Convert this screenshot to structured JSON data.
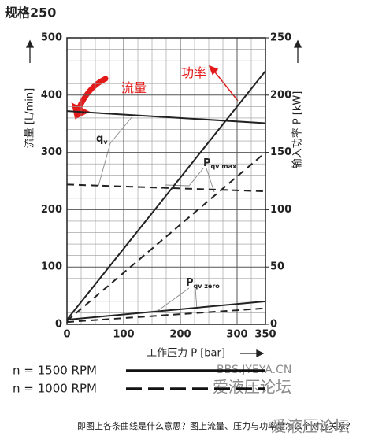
{
  "chart_data": {
    "type": "line",
    "title": "规格250",
    "xlabel": "工作压力 P [bar]",
    "ylabel": "流量 [L/min]",
    "y2label": "输入功率 P [kW]",
    "xlim": [
      0,
      350
    ],
    "xticks": [
      0,
      100,
      200,
      300,
      350
    ],
    "ylim": [
      0,
      500
    ],
    "yticks": [
      0,
      100,
      200,
      300,
      400,
      500
    ],
    "y2lim": [
      0,
      250
    ],
    "y2ticks": [
      0,
      50,
      100,
      150,
      200,
      250
    ],
    "grid": true,
    "series": [
      {
        "color": "#222222",
        "style": "solid",
        "axis": "y",
        "x": [
          0,
          350
        ],
        "values": [
          372,
          351
        ]
      },
      {
        "color": "#222222",
        "style": "dashed",
        "axis": "y",
        "x": [
          0,
          350
        ],
        "values": [
          244,
          232
        ]
      },
      {
        "color": "#222222",
        "style": "solid",
        "axis": "y2",
        "x": [
          0,
          350
        ],
        "values": [
          4,
          221
        ]
      },
      {
        "color": "#222222",
        "style": "dashed",
        "axis": "y2",
        "x": [
          0,
          350
        ],
        "values": [
          3,
          150
        ]
      },
      {
        "color": "#222222",
        "style": "solid",
        "axis": "y2",
        "x": [
          0,
          350
        ],
        "values": [
          4,
          20
        ]
      },
      {
        "color": "#222222",
        "style": "dashed",
        "axis": "y2",
        "x": [
          0,
          350
        ],
        "values": [
          2,
          14
        ]
      }
    ],
    "annotations": [
      {
        "text": "q",
        "sub": "v"
      },
      {
        "text": "P",
        "sub": "qv max"
      },
      {
        "text": "P",
        "sub": "qv zero"
      },
      {
        "text": "流量"
      },
      {
        "text": "功率"
      }
    ],
    "legend": [
      {
        "label": "n = 1500 RPM",
        "style": "solid"
      },
      {
        "label": "n = 1000 RPM",
        "style": "dashed"
      }
    ]
  },
  "watermark": [
    "BBS.JYEYA.CN",
    "爱液压论坛",
    "爱液压论坛"
  ],
  "caption": "即图上各条曲线是什么意思？图上流量、压力与功率是怎么个对应关系？"
}
